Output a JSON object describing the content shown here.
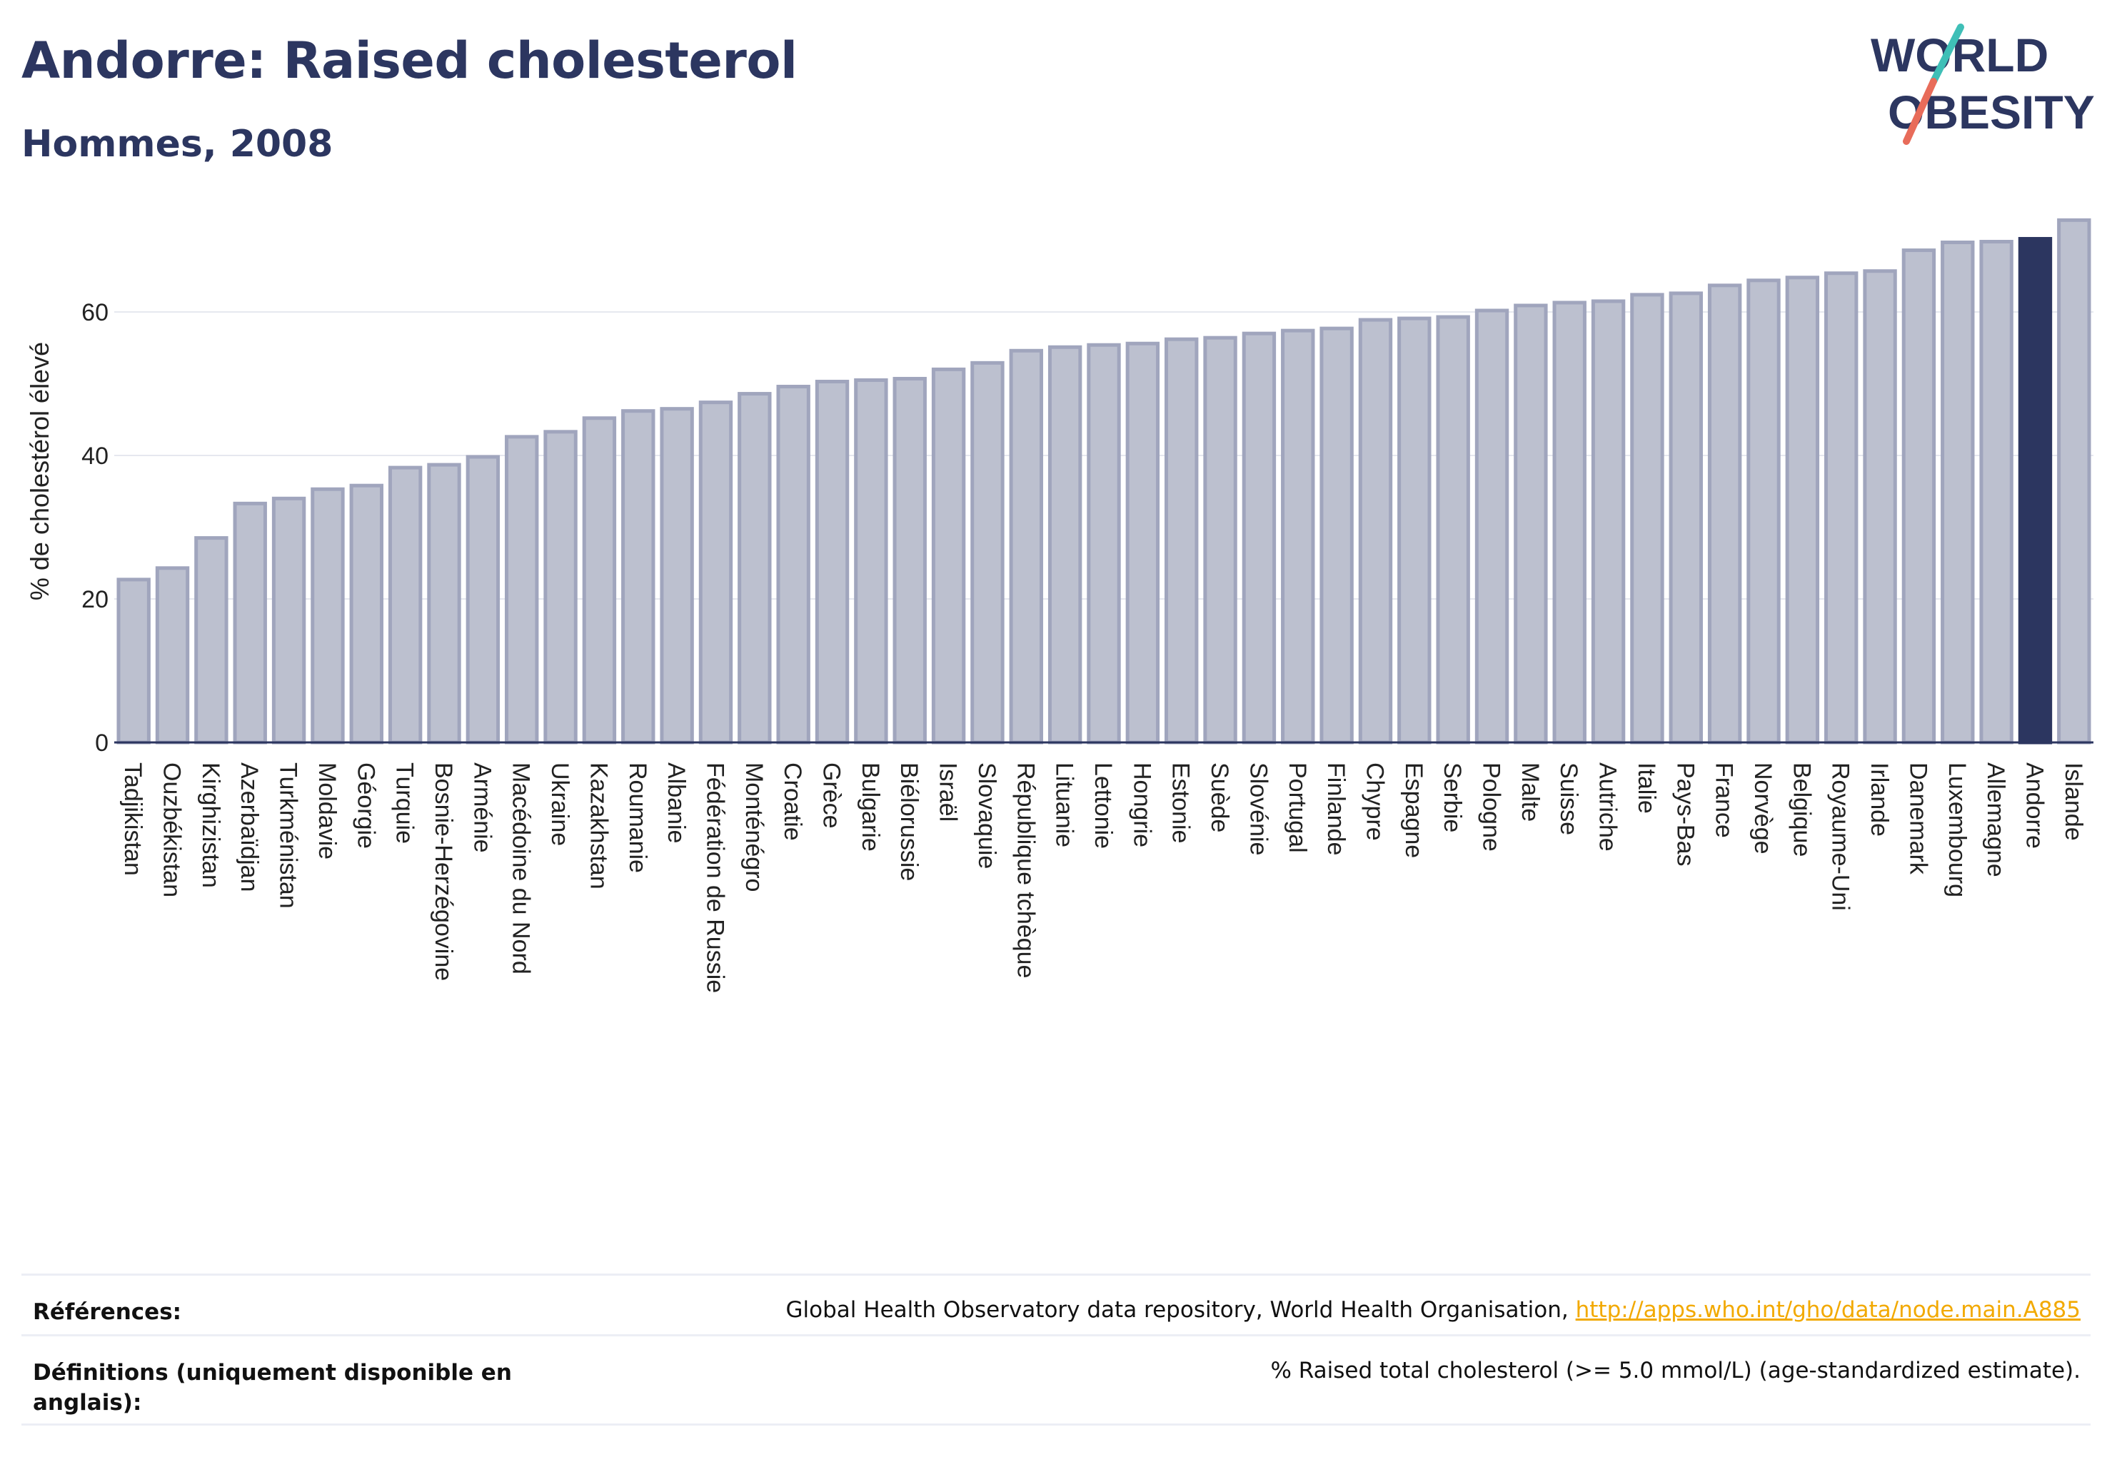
{
  "header": {
    "title": "Andorre: Raised cholesterol",
    "subtitle": "Hommes, 2008"
  },
  "logo": {
    "line1": "WORLD",
    "line2": "OBESITY"
  },
  "colors": {
    "title": "#2c3660",
    "bar": "#bcc0cf",
    "bar_stroke": "#a0a5bd",
    "highlight": "#2c3660",
    "link": "#f2a900"
  },
  "chart_data": {
    "type": "bar",
    "title": "Andorre: Raised cholesterol",
    "subtitle": "Hommes, 2008",
    "ylabel": "% de cholestérol élevé",
    "xlabel": "",
    "ylim": [
      0,
      75
    ],
    "yticks": [
      0,
      20,
      40,
      60
    ],
    "grid": true,
    "highlight": "Andorre",
    "categories": [
      "Tadjikistan",
      "Ouzbékistan",
      "Kirghizistan",
      "Azerbaïdjan",
      "Turkménistan",
      "Moldavie",
      "Géorgie",
      "Turquie",
      "Bosnie-Herzégovine",
      "Arménie",
      "Macédoine du Nord",
      "Ukraine",
      "Kazakhstan",
      "Roumanie",
      "Albanie",
      "Fédération de Russie",
      "Monténégro",
      "Croatie",
      "Grèce",
      "Bulgarie",
      "Biélorussie",
      "Israël",
      "Slovaquie",
      "République tchèque",
      "Lituanie",
      "Lettonie",
      "Hongrie",
      "Estonie",
      "Suède",
      "Slovénie",
      "Portugal",
      "Finlande",
      "Chypre",
      "Espagne",
      "Serbie",
      "Pologne",
      "Malte",
      "Suisse",
      "Autriche",
      "Italie",
      "Pays-Bas",
      "France",
      "Norvège",
      "Belgique",
      "Royaume-Uni",
      "Irlande",
      "Danemark",
      "Luxembourg",
      "Allemagne",
      "Andorre",
      "Islande"
    ],
    "values": [
      22.7,
      24.3,
      28.5,
      33.3,
      34.0,
      35.3,
      35.8,
      38.3,
      38.7,
      39.8,
      42.6,
      43.3,
      45.2,
      46.2,
      46.5,
      47.4,
      48.6,
      49.6,
      50.3,
      50.5,
      50.7,
      52.0,
      52.9,
      54.6,
      55.1,
      55.4,
      55.6,
      56.2,
      56.4,
      57.0,
      57.4,
      57.7,
      58.9,
      59.1,
      59.3,
      60.2,
      60.9,
      61.3,
      61.5,
      62.4,
      62.6,
      63.7,
      64.4,
      64.8,
      65.4,
      65.7,
      68.6,
      69.7,
      69.8,
      70.2,
      72.8
    ]
  },
  "references": {
    "label": "Références:",
    "source": "Global Health Observatory data repository, World Health Organisation, ",
    "link": "http://apps.who.int/gho/data/node.main.A885"
  },
  "definitions": {
    "label": "Définitions (uniquement disponible en anglais):",
    "text": "% Raised total cholesterol (>= 5.0 mmol/L) (age-standardized estimate)."
  }
}
